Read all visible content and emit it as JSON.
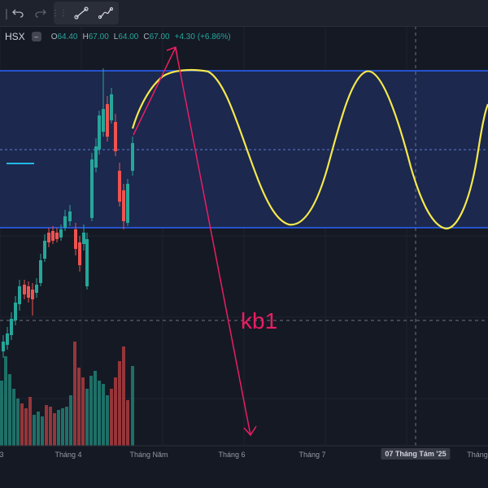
{
  "toolbar": {
    "undo_icon": "undo-icon",
    "redo_icon": "redo-icon",
    "drag_handle_icon": "drag-handle-icon",
    "trend_line_icon": "trend-line-icon",
    "path_tool_icon": "path-tool-icon"
  },
  "legend": {
    "exchange": "HSX",
    "collapse_label": "–",
    "open_key": "O",
    "open": "64.40",
    "high_key": "H",
    "high": "67.00",
    "low_key": "L",
    "low": "64.00",
    "close_key": "C",
    "close": "67.00",
    "change": "+4.30 (+6.86%)"
  },
  "annotation": {
    "text": "kb1"
  },
  "xaxis": {
    "labels": [
      "3",
      "Tháng 4",
      "Tháng Năm",
      "Tháng 6",
      "Tháng 7"
    ],
    "highlight_label": "07 Tháng Tám '25",
    "last_label": "Tháng"
  },
  "colors": {
    "background": "#151924",
    "bull": "#26a69a",
    "bear": "#ef5350",
    "channel_fill": "#1d2b55",
    "channel_border": "#2962ff",
    "wave": "#f5e94c",
    "arrow": "#e91e63"
  },
  "chart_data": {
    "type": "candlestick",
    "symbol": "HSX",
    "last_bar": {
      "open": 64.4,
      "high": 67.0,
      "low": 64.0,
      "close": 67.0,
      "change": 4.3,
      "change_pct": 6.86
    },
    "x_ticks": [
      "Tháng 4",
      "Tháng Năm",
      "Tháng 6",
      "Tháng 7",
      "07 Tháng Tám '25"
    ]
  }
}
